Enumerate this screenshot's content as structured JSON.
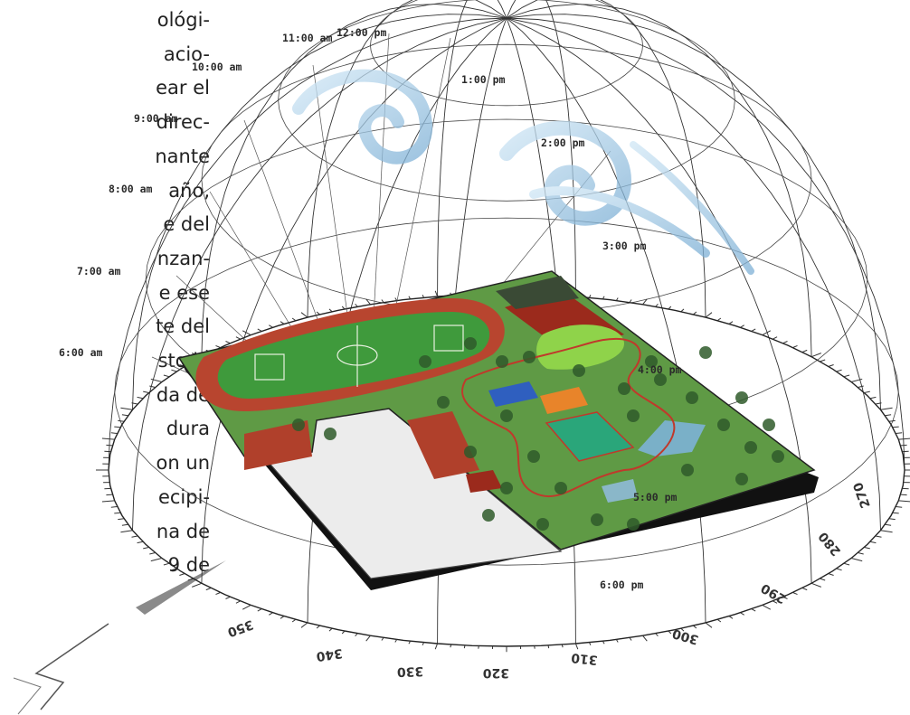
{
  "paragraph_lines": [
    "ológi-",
    "acio-",
    "ear el",
    "direc-",
    "nante",
    "año,",
    "e del",
    "nzan-",
    "e ese",
    "te del",
    "sto la",
    "da de",
    "dura",
    "on un",
    "ecipi-",
    "na de",
    "9 de"
  ],
  "sun_times": [
    "6:00 am",
    "7:00 am",
    "8:00 am",
    "9:00 am",
    "10:00 am",
    "11:00 am",
    "12:00 pm",
    "1:00 pm",
    "2:00 pm",
    "3:00 pm",
    "4:00 pm",
    "5:00 pm",
    "6:00 pm"
  ],
  "degree_labels": [
    "350",
    "340",
    "330",
    "320",
    "310",
    "300",
    "290",
    "280",
    "270"
  ],
  "colors": {
    "grass": "#5f9a45",
    "track": "#b8452f",
    "field": "#3f9a3c",
    "clay": "#9b2a1c",
    "base": "#111111"
  }
}
